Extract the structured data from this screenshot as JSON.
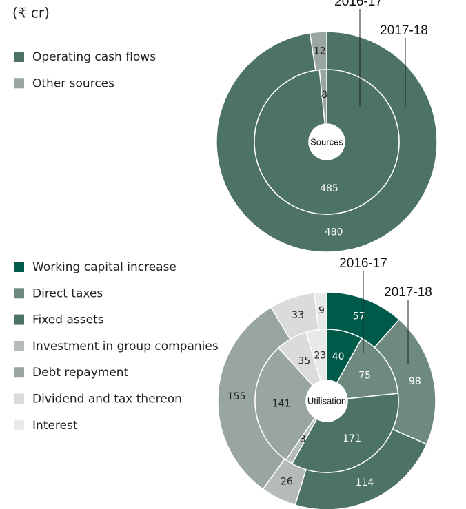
{
  "chart_data": [
    {
      "type": "donut",
      "unit": "(₹ cr)",
      "center_label": "Sources",
      "categories": [
        "Operating cash flows",
        "Other sources"
      ],
      "colors": [
        "#4d7366",
        "#98a69f"
      ],
      "series": [
        {
          "name": "2017-18",
          "values": [
            480,
            12
          ]
        },
        {
          "name": "2016-17",
          "values": [
            485,
            8
          ]
        }
      ]
    },
    {
      "type": "donut",
      "center_label": "Utilisation",
      "categories": [
        "Working capital increase",
        "Direct taxes",
        "Fixed assets",
        "Investment in group companies",
        "Debt repayment",
        "Dividend and tax thereon",
        "Interest"
      ],
      "colors": [
        "#005a4a",
        "#6e8a7e",
        "#4d7366",
        "#b5bcb8",
        "#98a69f",
        "#d9dcda",
        "#e8eae9"
      ],
      "series": [
        {
          "name": "2017-18",
          "values": [
            57,
            98,
            114,
            26,
            155,
            33,
            9
          ]
        },
        {
          "name": "2016-17",
          "values": [
            40,
            75,
            171,
            8,
            141,
            35,
            23
          ]
        }
      ]
    }
  ]
}
